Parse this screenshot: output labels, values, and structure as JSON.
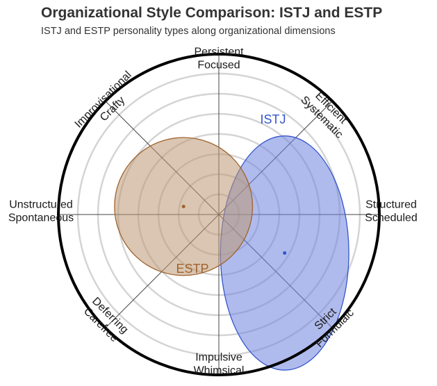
{
  "title": "Organizational Style Comparison: ISTJ and ESTP",
  "subtitle": "ISTJ and ESTP personality types along organizational dimensions",
  "chart_data": {
    "type": "radar-ellipse",
    "title": "Organizational Style Comparison: ISTJ and ESTP",
    "subtitle": "ISTJ and ESTP personality types along organizational dimensions",
    "axes": [
      {
        "name": "persistent",
        "lines": [
          "Persistent",
          "Focused"
        ]
      },
      {
        "name": "efficient",
        "lines": [
          "Efficient",
          "Systematic"
        ]
      },
      {
        "name": "structured",
        "lines": [
          "Structured",
          "Scheduled"
        ]
      },
      {
        "name": "strict",
        "lines": [
          "Strict",
          "Formulaic"
        ]
      },
      {
        "name": "impulsive",
        "lines": [
          "Impulsive",
          "Whimsical"
        ]
      },
      {
        "name": "deferring",
        "lines": [
          "Deferring",
          "Carefree"
        ]
      },
      {
        "name": "unstructured",
        "lines": [
          "Unstructured",
          "Spontaneous"
        ]
      },
      {
        "name": "improvisational",
        "lines": [
          "Improvisational",
          "Crafty"
        ]
      }
    ],
    "rings": 7,
    "series": [
      {
        "name": "ISTJ",
        "color": "#3355cc",
        "fill": "#6f84de",
        "center": [
          0.41,
          0.24
        ],
        "radii": [
          0.4,
          0.73
        ]
      },
      {
        "name": "ESTP",
        "color": "#a0622d",
        "fill": "#bc9873",
        "center": [
          -0.22,
          -0.05
        ],
        "radii": [
          0.43,
          0.43
        ]
      }
    ]
  }
}
